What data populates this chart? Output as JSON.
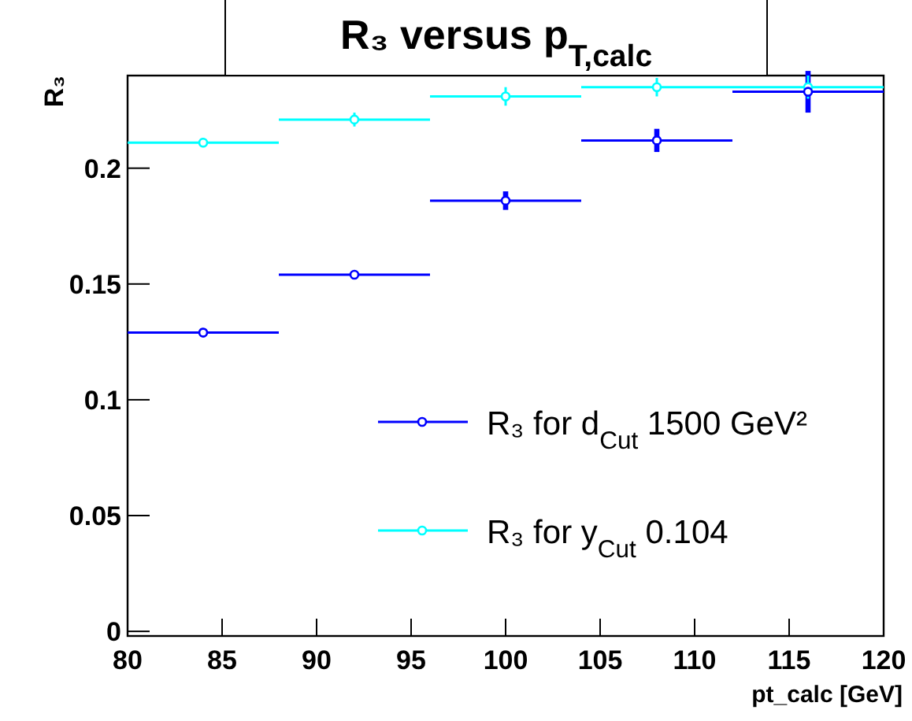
{
  "chart_data": {
    "type": "scatter",
    "title": "R₃ versus p$_{T,calc}$",
    "xlabel": "pt_calc [GeV]",
    "ylabel": "R₃",
    "x": [
      84,
      92,
      100,
      108,
      116
    ],
    "xlim": [
      80,
      120
    ],
    "xticks": [
      80,
      85,
      90,
      95,
      100,
      105,
      110,
      115,
      120
    ],
    "ylim": [
      -0.002,
      0.24
    ],
    "yticks": [
      0,
      0.05,
      0.1,
      0.15,
      0.2
    ],
    "grid": false,
    "legend": "right",
    "marker": "circle",
    "series": [
      {
        "name": "R₃ for d$_{Cut}$ 1500 GeV²",
        "color": "#0000ff",
        "values": [
          0.129,
          0.154,
          0.186,
          0.212,
          0.233
        ],
        "errors": [
          0.001,
          0.001,
          0.004,
          0.005,
          0.009
        ],
        "xerrors": [
          4,
          4,
          4,
          4,
          4
        ]
      },
      {
        "name": "R₃ for y$_{Cut}$ 0.104",
        "color": "#00ffff",
        "values": [
          0.211,
          0.221,
          0.231,
          0.235,
          0.235
        ],
        "errors": [
          0.002,
          0.003,
          0.004,
          0.004,
          0.005
        ],
        "xerrors": [
          4,
          4,
          4,
          4,
          4
        ]
      }
    ]
  }
}
